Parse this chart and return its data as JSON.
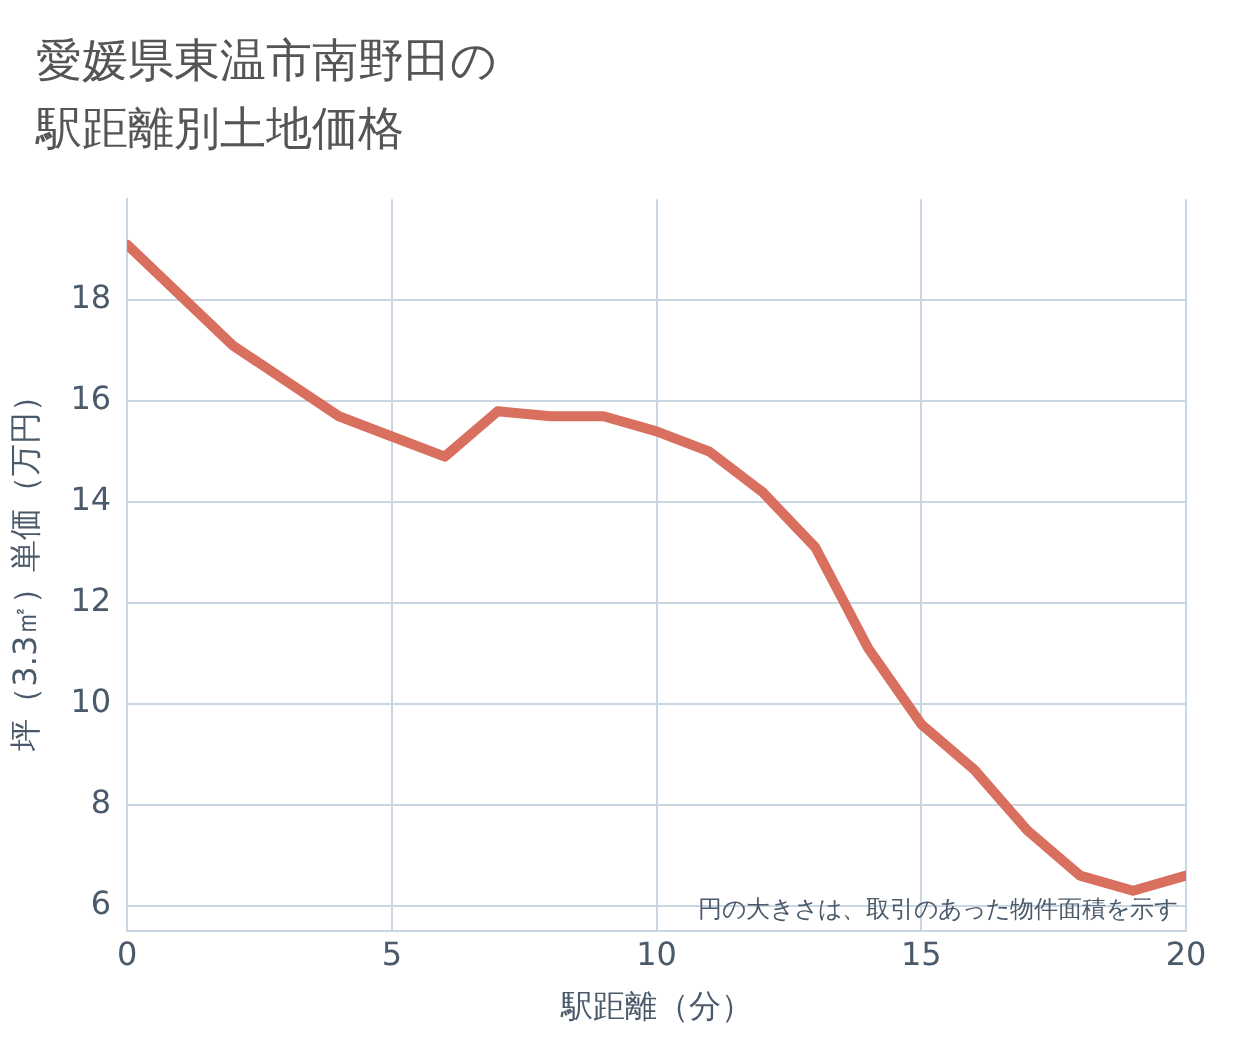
{
  "chart_data": {
    "type": "line",
    "title": "愛媛県東温市南野田の駅距離別土地価格",
    "xlabel": "駅距離（分）",
    "ylabel": "坪（3.3㎡）単価（万円）",
    "x": [
      0,
      1,
      2,
      3,
      4,
      5,
      6,
      7,
      8,
      9,
      10,
      11,
      12,
      13,
      14,
      15,
      16,
      17,
      18,
      19,
      20
    ],
    "series": [
      {
        "color": "#d9705f",
        "values": [
          19.1,
          18.1,
          17.1,
          16.4,
          15.7,
          15.3,
          14.9,
          15.8,
          15.7,
          15.7,
          15.4,
          15.0,
          14.2,
          13.1,
          11.1,
          9.6,
          8.7,
          7.5,
          6.6,
          6.3,
          6.6
        ]
      }
    ],
    "xlim": [
      0,
      20
    ],
    "xticks": [
      0,
      5,
      10,
      15,
      20
    ],
    "ylim": [
      5.5,
      20
    ],
    "yticks": [
      6,
      8,
      10,
      12,
      14,
      16,
      18
    ],
    "grid": true,
    "legend": false,
    "marker": "none",
    "line_style": "solid",
    "annotations": [
      "円の大きさは、取引のあった物件面積を示す"
    ]
  }
}
